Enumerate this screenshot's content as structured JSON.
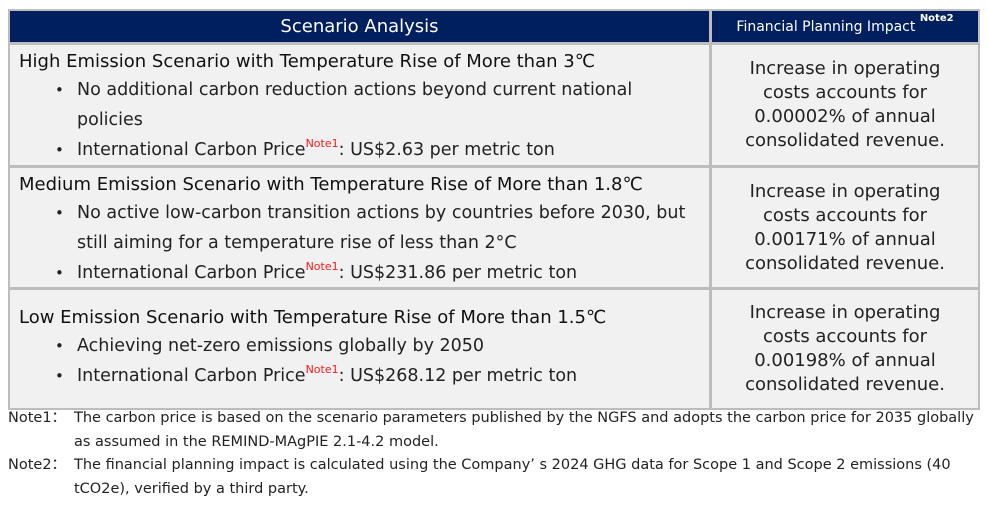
{
  "table": {
    "header": {
      "scenario_col": "Scenario Analysis",
      "impact_col": "Financial Planning Impact",
      "impact_note": "Note2"
    },
    "rows": [
      {
        "title": "High Emission Scenario with Temperature Rise of More than 3℃",
        "bullets": [
          {
            "text": "No additional carbon reduction actions beyond current national policies"
          },
          {
            "prefix": "International Carbon Price",
            "note": "Note1",
            "suffix": ": US$2.63 per metric ton"
          }
        ],
        "impact": "Increase in operating costs accounts for 0.00002% of annual consolidated revenue."
      },
      {
        "title": "Medium Emission Scenario with Temperature Rise of More than 1.8℃",
        "bullets": [
          {
            "text": "No active low-carbon transition actions by countries before 2030, but still aiming for a temperature rise of less than 2°C"
          },
          {
            "prefix": "International Carbon Price",
            "note": "Note1",
            "suffix": ": US$231.86 per metric ton"
          }
        ],
        "impact": "Increase in operating costs accounts for 0.00171% of annual consolidated revenue."
      },
      {
        "title": "Low Emission Scenario with Temperature Rise of More than 1.5℃",
        "bullets": [
          {
            "text": "Achieving net-zero emissions globally by 2050"
          },
          {
            "prefix": "International Carbon Price",
            "note": "Note1",
            "suffix": ": US$268.12 per metric ton"
          }
        ],
        "impact": "Increase in operating costs accounts for 0.00198% of annual consolidated revenue."
      }
    ]
  },
  "notes": [
    {
      "label": "Note1：",
      "text": "The carbon price is based on the scenario parameters published by the NGFS and adopts the carbon price for 2035 globally as assumed in the REMIND-MAgPIE 2.1-4.2 model."
    },
    {
      "label": "Note2：",
      "text": "The financial planning impact is calculated using the Company’ s 2024 GHG data for Scope 1 and Scope 2 emissions (40 tCO2e), verified by a third party."
    }
  ],
  "colors": {
    "header_bg": "#001f5f",
    "row_bg": "#f1f1f1",
    "border": "#bdbdbd",
    "note_sup": "#ff1a1a"
  }
}
